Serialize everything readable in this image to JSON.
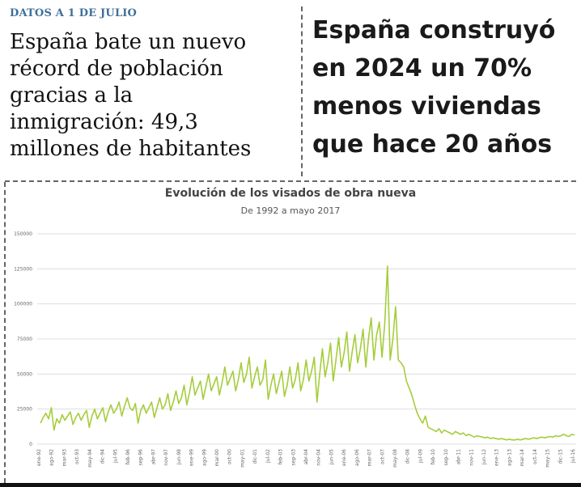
{
  "left_article": {
    "eyebrow": "DATOS A 1 DE JULIO",
    "headline_lines": [
      "España bate un nuevo",
      "récord de población",
      "gracias a la",
      "inmigración: 49,3",
      "millones de habitantes"
    ]
  },
  "right_article": {
    "headline_lines": [
      "España construyó",
      "en 2024 un 70%",
      "menos viviendas",
      "que hace 20 años"
    ]
  },
  "colors": {
    "line": "#a5cd3c",
    "grid": "#dddddd",
    "eyebrow": "#3f6f99"
  },
  "chart_data": {
    "type": "line",
    "title": "Evolución de los visados de obra nueva",
    "subtitle": "De 1992 a mayo 2017",
    "xlabel": "",
    "ylabel": "",
    "ylim": [
      0,
      150000
    ],
    "grid": true,
    "y_ticks": [
      0,
      25000,
      50000,
      75000,
      100000,
      125000,
      150000
    ],
    "y_tick_labels": [
      "0",
      "25000",
      "50000",
      "75000",
      "100000",
      "125000",
      "150000"
    ],
    "x_tick_labels": [
      "ene-92",
      "ago-92",
      "mar-93",
      "oct-93",
      "may-94",
      "dic-94",
      "jul-95",
      "feb-96",
      "sep-96",
      "abr-97",
      "nov-97",
      "jun-98",
      "ene-99",
      "ago-99",
      "mar-00",
      "oct-00",
      "may-01",
      "dic-01",
      "jul-02",
      "feb-03",
      "sep-03",
      "abr-04",
      "nov-04",
      "jun-05",
      "ene-06",
      "ago-06",
      "mar-07",
      "oct-07",
      "may-08",
      "dic-08",
      "jul-09",
      "feb-10",
      "sep-10",
      "abr-11",
      "nov-11",
      "jun-12",
      "ene-13",
      "ago-13",
      "mar-14",
      "oct-14",
      "may-15",
      "dic-15",
      "jul-16"
    ],
    "series": [
      {
        "values": [
          15000,
          19000,
          22000,
          18000,
          26000,
          10000,
          18000,
          15000,
          21000,
          17000,
          20000,
          23000,
          14000,
          19000,
          22000,
          17000,
          21000,
          24000,
          12000,
          20000,
          25000,
          18000,
          22000,
          26000,
          16000,
          23000,
          28000,
          22000,
          25000,
          30000,
          20000,
          27000,
          33000,
          26000,
          24000,
          29000,
          15000,
          24000,
          28000,
          22000,
          26000,
          30000,
          19000,
          26000,
          33000,
          25000,
          28000,
          36000,
          24000,
          30000,
          38000,
          29000,
          33000,
          42000,
          28000,
          37000,
          48000,
          35000,
          40000,
          45000,
          32000,
          41000,
          50000,
          38000,
          43000,
          48000,
          35000,
          44000,
          55000,
          42000,
          47000,
          52000,
          38000,
          46000,
          58000,
          44000,
          50000,
          62000,
          40000,
          48000,
          55000,
          42000,
          46000,
          60000,
          32000,
          42000,
          50000,
          36000,
          44000,
          52000,
          34000,
          42000,
          55000,
          40000,
          46000,
          58000,
          38000,
          46000,
          60000,
          45000,
          52000,
          62000,
          30000,
          50000,
          68000,
          48000,
          58000,
          72000,
          45000,
          60000,
          76000,
          55000,
          65000,
          80000,
          52000,
          66000,
          78000,
          58000,
          68000,
          82000,
          55000,
          75000,
          90000,
          60000,
          78000,
          87000,
          62000,
          86000,
          127000,
          60000,
          75000,
          98000,
          60000,
          58000,
          55000,
          45000,
          40000,
          35000,
          28000,
          22000,
          18000,
          15000,
          20000,
          12000,
          11000,
          10000,
          9000,
          11000,
          8000,
          10000,
          9000,
          8000,
          7000,
          9000,
          8000,
          7000,
          8000,
          6000,
          7000,
          6000,
          5000,
          6000,
          5500,
          5000,
          4500,
          5000,
          4000,
          4500,
          4000,
          3500,
          4000,
          3500,
          3000,
          3500,
          3000,
          3000,
          3500,
          3000,
          3500,
          4000,
          3500,
          4000,
          4500,
          4000,
          4500,
          5000,
          4500,
          5000,
          5500,
          5000,
          6000,
          5500,
          6000,
          7000,
          6000,
          5500,
          7000,
          6500
        ]
      }
    ]
  }
}
